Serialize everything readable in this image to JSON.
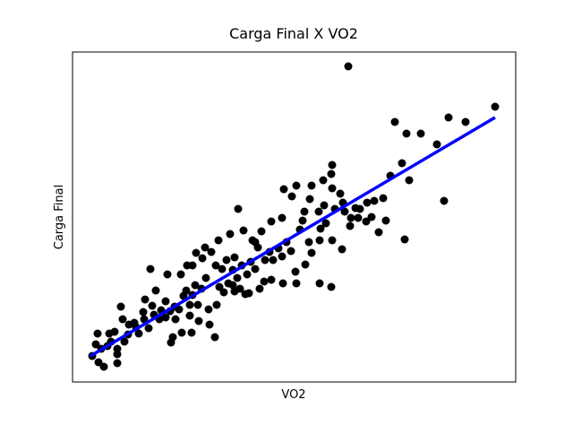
{
  "chart_data": {
    "type": "scatter",
    "title": "Carga Final X VO2",
    "x_label": "VO2",
    "y_label": "Carga Final",
    "xlim": [
      0,
      495
    ],
    "ylim": [
      0,
      368
    ],
    "series": [
      {
        "type": "scatter",
        "color": "#000000",
        "x": [
          308,
          472,
          360,
          420,
          439,
          373,
          389,
          407,
          355,
          368,
          376,
          415,
          371,
          342,
          350,
          290,
          289,
          280,
          267,
          250,
          236,
          245,
          265,
          290,
          299,
          302,
          311,
          321,
          329,
          337,
          347,
          334,
          328,
          316,
          304,
          293,
          281,
          275,
          259,
          257,
          234,
          222,
          211,
          201,
          207,
          191,
          176,
          185,
          163,
          148,
          138,
          134,
          128,
          121,
          106,
          87,
          93,
          81,
          104,
          114,
          124,
          134,
          140,
          152,
          161,
          169,
          181,
          193,
          209,
          214,
          222,
          235,
          250,
          276,
          289,
          249,
          260,
          264,
          276,
          290,
          301,
          277,
          254,
          239,
          230,
          220,
          215,
          199,
          189,
          179,
          172,
          160,
          155,
          145,
          137,
          127,
          115,
          131,
          141,
          153,
          159,
          133,
          122,
          112,
          110,
          104,
          91,
          80,
          71,
          62,
          54,
          56,
          47,
          43,
          39,
          32,
          28,
          41,
          50,
          50,
          50,
          35,
          29,
          22,
          26,
          58,
          74,
          85,
          99,
          174,
          184,
          195,
          204,
          224,
          234,
          244,
          267,
          283,
          310,
          319,
          204,
          181,
          167,
          149,
          144,
          164,
          179,
          187,
          197,
          131,
          119,
          109,
          97,
          89,
          79,
          69,
          63
        ],
        "values": [
          352,
          307,
          290,
          295,
          290,
          277,
          277,
          265,
          230,
          244,
          225,
          202,
          159,
          167,
          180,
          242,
          232,
          225,
          219,
          219,
          215,
          207,
          204,
          216,
          210,
          200,
          183,
          193,
          200,
          202,
          205,
          184,
          179,
          194,
          190,
          193,
          197,
          190,
          190,
          180,
          183,
          179,
          168,
          158,
          150,
          169,
          165,
          193,
          158,
          150,
          144,
          130,
          130,
          120,
          120,
          126,
          102,
          92,
          90,
          84,
          96,
          97,
          86,
          81,
          86,
          100,
          101,
          98,
          104,
          112,
          114,
          110,
          110,
          110,
          106,
          123,
          131,
          156,
          158,
          158,
          148,
          171,
          170,
          156,
          149,
          145,
          136,
          134,
          130,
          125,
          136,
          130,
          145,
          138,
          108,
          102,
          70,
          74,
          68,
          64,
          50,
          55,
          55,
          50,
          44,
          72,
          75,
          70,
          61,
          53,
          84,
          70,
          56,
          45,
          40,
          37,
          54,
          54,
          37,
          21,
          31,
          17,
          22,
          29,
          42,
          45,
          54,
          60,
          80,
          110,
          116,
          120,
          126,
          136,
          140,
          146,
          144,
          177,
          174,
          183,
          156,
          139,
          126,
          116,
          104,
          106,
          108,
          104,
          99,
          86,
          81,
          79,
          70,
          85,
          78,
          66,
          64
        ]
      },
      {
        "type": "line",
        "color": "#0000ff",
        "x": [
          20,
          472
        ],
        "values": [
          29,
          295
        ]
      }
    ]
  }
}
